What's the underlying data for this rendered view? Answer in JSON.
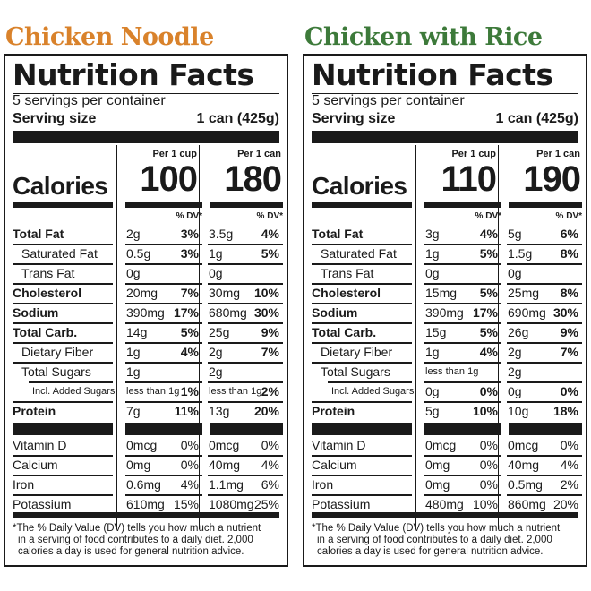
{
  "colors": {
    "noodle_title": "#d9822b",
    "rice_title": "#3d7a3a",
    "ink": "#1a1a1a"
  },
  "labels": {
    "nutrition_facts": "Nutrition Facts",
    "servings_per_container": "5 servings per container",
    "serving_size_label": "Serving size",
    "serving_size_value": "1 can (425g)",
    "calories": "Calories",
    "per_cup": "Per 1 cup",
    "per_can": "Per 1 can",
    "dv": "% DV*",
    "footnote": [
      "*The % Daily Value (DV) tells you how much a nutrient",
      "in a serving of food contributes to a daily diet. 2,000",
      "calories a day is used for general nutrition advice."
    ]
  },
  "products": [
    {
      "title": "Chicken Noodle",
      "calories_cup": "100",
      "calories_can": "180",
      "nutrients": [
        {
          "name": "Total Fat",
          "cup_amt": "2g",
          "cup_dv": "3%",
          "can_amt": "3.5g",
          "can_dv": "4%"
        },
        {
          "name": "Saturated Fat",
          "cup_amt": "0.5g",
          "cup_dv": "3%",
          "can_amt": "1g",
          "can_dv": "5%"
        },
        {
          "name": "Trans Fat",
          "cup_amt": "0g",
          "cup_dv": "",
          "can_amt": "0g",
          "can_dv": ""
        },
        {
          "name": "Cholesterol",
          "cup_amt": "20mg",
          "cup_dv": "7%",
          "can_amt": "30mg",
          "can_dv": "10%"
        },
        {
          "name": "Sodium",
          "cup_amt": "390mg",
          "cup_dv": "17%",
          "can_amt": "680mg",
          "can_dv": "30%"
        },
        {
          "name": "Total Carb.",
          "cup_amt": "14g",
          "cup_dv": "5%",
          "can_amt": "25g",
          "can_dv": "9%"
        },
        {
          "name": "Dietary Fiber",
          "cup_amt": "1g",
          "cup_dv": "4%",
          "can_amt": "2g",
          "can_dv": "7%"
        },
        {
          "name": "Total Sugars",
          "cup_amt": "1g",
          "cup_dv": "",
          "can_amt": "2g",
          "can_dv": ""
        },
        {
          "name": "Incl. Added Sugars",
          "cup_amt": "less than 1g",
          "cup_dv": "1%",
          "can_amt": "less than 1g",
          "can_dv": "2%"
        },
        {
          "name": "Protein",
          "cup_amt": "7g",
          "cup_dv": "11%",
          "can_amt": "13g",
          "can_dv": "20%"
        }
      ],
      "vitamins": [
        {
          "name": "Vitamin D",
          "cup_amt": "0mcg",
          "cup_dv": "0%",
          "can_amt": "0mcg",
          "can_dv": "0%"
        },
        {
          "name": "Calcium",
          "cup_amt": "0mg",
          "cup_dv": "0%",
          "can_amt": "40mg",
          "can_dv": "4%"
        },
        {
          "name": "Iron",
          "cup_amt": "0.6mg",
          "cup_dv": "4%",
          "can_amt": "1.1mg",
          "can_dv": "6%"
        },
        {
          "name": "Potassium",
          "cup_amt": "610mg",
          "cup_dv": "15%",
          "can_amt": "1080mg",
          "can_dv": "25%"
        }
      ]
    },
    {
      "title": "Chicken with Rice",
      "calories_cup": "110",
      "calories_can": "190",
      "nutrients": [
        {
          "name": "Total Fat",
          "cup_amt": "3g",
          "cup_dv": "4%",
          "can_amt": "5g",
          "can_dv": "6%"
        },
        {
          "name": "Saturated Fat",
          "cup_amt": "1g",
          "cup_dv": "5%",
          "can_amt": "1.5g",
          "can_dv": "8%"
        },
        {
          "name": "Trans Fat",
          "cup_amt": "0g",
          "cup_dv": "",
          "can_amt": "0g",
          "can_dv": ""
        },
        {
          "name": "Cholesterol",
          "cup_amt": "15mg",
          "cup_dv": "5%",
          "can_amt": "25mg",
          "can_dv": "8%"
        },
        {
          "name": "Sodium",
          "cup_amt": "390mg",
          "cup_dv": "17%",
          "can_amt": "690mg",
          "can_dv": "30%"
        },
        {
          "name": "Total Carb.",
          "cup_amt": "15g",
          "cup_dv": "5%",
          "can_amt": "26g",
          "can_dv": "9%"
        },
        {
          "name": "Dietary Fiber",
          "cup_amt": "1g",
          "cup_dv": "4%",
          "can_amt": "2g",
          "can_dv": "7%"
        },
        {
          "name": "Total Sugars",
          "cup_amt": "less than 1g",
          "cup_dv": "",
          "can_amt": "2g",
          "can_dv": ""
        },
        {
          "name": "Incl. Added Sugars",
          "cup_amt": "0g",
          "cup_dv": "0%",
          "can_amt": "0g",
          "can_dv": "0%"
        },
        {
          "name": "Protein",
          "cup_amt": "5g",
          "cup_dv": "10%",
          "can_amt": "10g",
          "can_dv": "18%"
        }
      ],
      "vitamins": [
        {
          "name": "Vitamin D",
          "cup_amt": "0mcg",
          "cup_dv": "0%",
          "can_amt": "0mcg",
          "can_dv": "0%"
        },
        {
          "name": "Calcium",
          "cup_amt": "0mg",
          "cup_dv": "0%",
          "can_amt": "40mg",
          "can_dv": "4%"
        },
        {
          "name": "Iron",
          "cup_amt": "0mg",
          "cup_dv": "0%",
          "can_amt": "0.5mg",
          "can_dv": "2%"
        },
        {
          "name": "Potassium",
          "cup_amt": "480mg",
          "cup_dv": "10%",
          "can_amt": "860mg",
          "can_dv": "20%"
        }
      ]
    }
  ]
}
